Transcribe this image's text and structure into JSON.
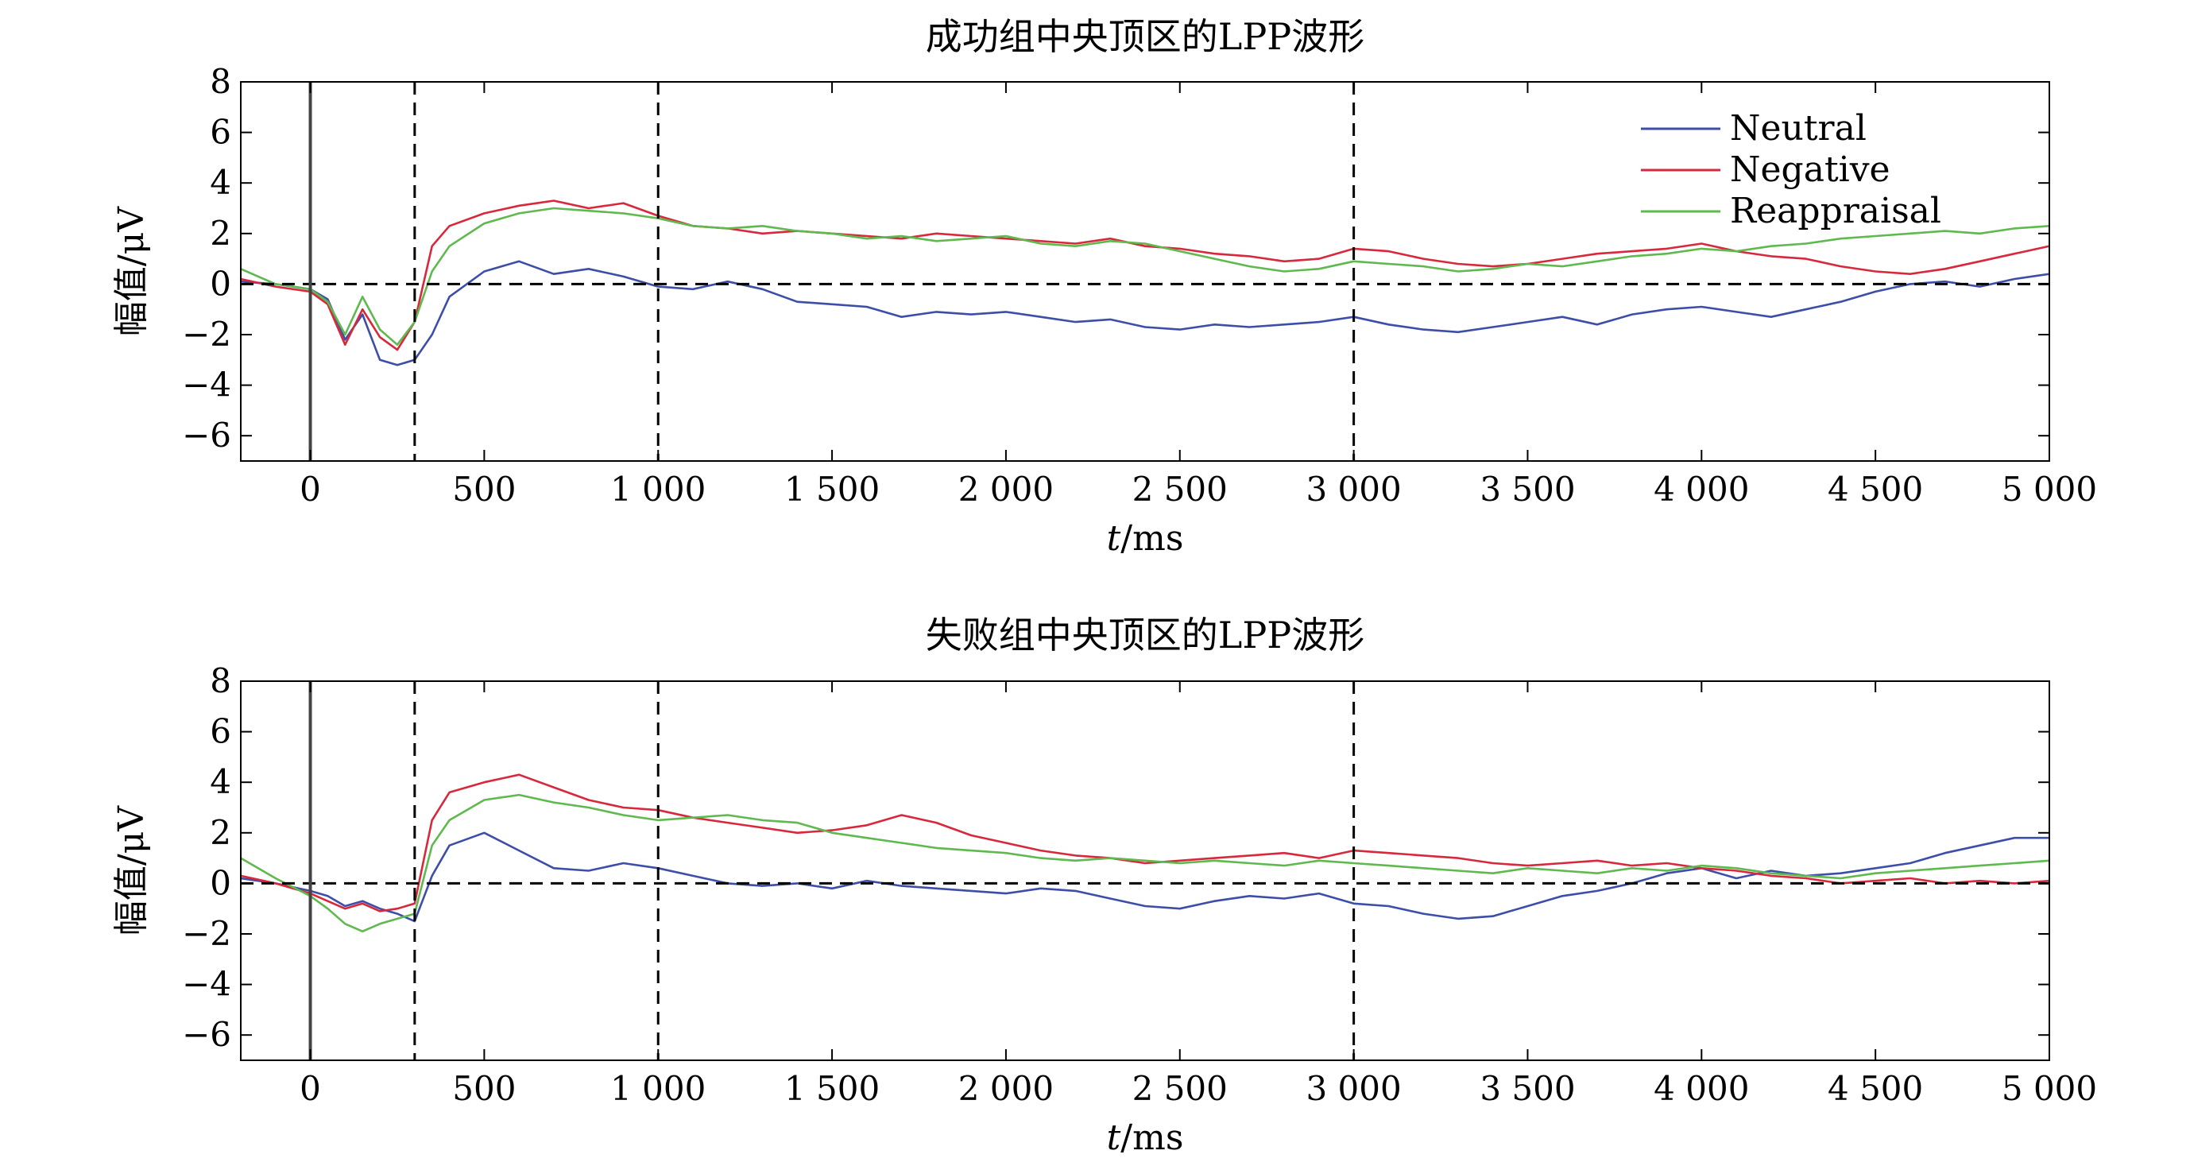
{
  "chart_data": [
    {
      "type": "line",
      "title": "成功组中央顶区的LPP波形",
      "xlabel_italic": "t",
      "xlabel_rest": "/ms",
      "ylabel": "幅值/μV",
      "xlim": [
        -200,
        5000
      ],
      "ylim": [
        -7,
        8
      ],
      "xticks": [
        0,
        500,
        1000,
        1500,
        2000,
        2500,
        3000,
        3500,
        4000,
        4500,
        5000
      ],
      "xtick_labels": [
        "0",
        "500",
        "1 000",
        "1 500",
        "2 000",
        "2 500",
        "3 000",
        "3 500",
        "4 000",
        "4 500",
        "5 000"
      ],
      "yticks": [
        -6,
        -4,
        -2,
        0,
        2,
        4,
        6,
        8
      ],
      "ytick_labels": [
        "−6",
        "−4",
        "−2",
        "0",
        "2",
        "4",
        "6",
        "8"
      ],
      "vlines_solid": [
        0
      ],
      "vlines_dashed": [
        300,
        1000,
        3000
      ],
      "hline_dashed": 0,
      "legend_position": "top-right",
      "grid": false,
      "series": [
        {
          "name": "Neutral",
          "color": "#3d4ea8",
          "x": [
            -200,
            -100,
            0,
            50,
            100,
            150,
            200,
            250,
            300,
            350,
            400,
            500,
            600,
            700,
            800,
            900,
            1000,
            1100,
            1200,
            1300,
            1400,
            1500,
            1600,
            1700,
            1800,
            1900,
            2000,
            2100,
            2200,
            2300,
            2400,
            2500,
            2600,
            2700,
            2800,
            2900,
            3000,
            3100,
            3200,
            3300,
            3400,
            3500,
            3600,
            3700,
            3800,
            3900,
            4000,
            4100,
            4200,
            4300,
            4400,
            4500,
            4600,
            4700,
            4800,
            4900,
            5000
          ],
          "y": [
            0.1,
            0.0,
            -0.2,
            -0.6,
            -2.2,
            -1.2,
            -3.0,
            -3.2,
            -3.0,
            -2.0,
            -0.5,
            0.5,
            0.9,
            0.4,
            0.6,
            0.3,
            -0.1,
            -0.2,
            0.1,
            -0.2,
            -0.7,
            -0.8,
            -0.9,
            -1.3,
            -1.1,
            -1.2,
            -1.1,
            -1.3,
            -1.5,
            -1.4,
            -1.7,
            -1.8,
            -1.6,
            -1.7,
            -1.6,
            -1.5,
            -1.3,
            -1.6,
            -1.8,
            -1.9,
            -1.7,
            -1.5,
            -1.3,
            -1.6,
            -1.2,
            -1.0,
            -0.9,
            -1.1,
            -1.3,
            -1.0,
            -0.7,
            -0.3,
            0.0,
            0.1,
            -0.1,
            0.2,
            0.4
          ]
        },
        {
          "name": "Negative",
          "color": "#d8283c",
          "x": [
            -200,
            -100,
            0,
            50,
            100,
            150,
            200,
            250,
            300,
            350,
            400,
            500,
            600,
            700,
            800,
            900,
            1000,
            1100,
            1200,
            1300,
            1400,
            1500,
            1600,
            1700,
            1800,
            1900,
            2000,
            2100,
            2200,
            2300,
            2400,
            2500,
            2600,
            2700,
            2800,
            2900,
            3000,
            3100,
            3200,
            3300,
            3400,
            3500,
            3600,
            3700,
            3800,
            3900,
            4000,
            4100,
            4200,
            4300,
            4400,
            4500,
            4600,
            4700,
            4800,
            4900,
            5000
          ],
          "y": [
            0.2,
            -0.1,
            -0.3,
            -0.8,
            -2.4,
            -1.0,
            -2.1,
            -2.6,
            -1.5,
            1.5,
            2.3,
            2.8,
            3.1,
            3.3,
            3.0,
            3.2,
            2.7,
            2.3,
            2.2,
            2.0,
            2.1,
            2.0,
            1.9,
            1.8,
            2.0,
            1.9,
            1.8,
            1.7,
            1.6,
            1.8,
            1.5,
            1.4,
            1.2,
            1.1,
            0.9,
            1.0,
            1.4,
            1.3,
            1.0,
            0.8,
            0.7,
            0.8,
            1.0,
            1.2,
            1.3,
            1.4,
            1.6,
            1.3,
            1.1,
            1.0,
            0.7,
            0.5,
            0.4,
            0.6,
            0.9,
            1.2,
            1.5
          ]
        },
        {
          "name": "Reappraisal",
          "color": "#5fb94f",
          "x": [
            -200,
            -100,
            0,
            50,
            100,
            150,
            200,
            250,
            300,
            350,
            400,
            500,
            600,
            700,
            800,
            900,
            1000,
            1100,
            1200,
            1300,
            1400,
            1500,
            1600,
            1700,
            1800,
            1900,
            2000,
            2100,
            2200,
            2300,
            2400,
            2500,
            2600,
            2700,
            2800,
            2900,
            3000,
            3100,
            3200,
            3300,
            3400,
            3500,
            3600,
            3700,
            3800,
            3900,
            4000,
            4100,
            4200,
            4300,
            4400,
            4500,
            4600,
            4700,
            4800,
            4900,
            5000
          ],
          "y": [
            0.6,
            0.0,
            -0.2,
            -0.7,
            -2.0,
            -0.5,
            -1.8,
            -2.4,
            -1.5,
            0.5,
            1.5,
            2.4,
            2.8,
            3.0,
            2.9,
            2.8,
            2.6,
            2.3,
            2.2,
            2.3,
            2.1,
            2.0,
            1.8,
            1.9,
            1.7,
            1.8,
            1.9,
            1.6,
            1.5,
            1.7,
            1.6,
            1.3,
            1.0,
            0.7,
            0.5,
            0.6,
            0.9,
            0.8,
            0.7,
            0.5,
            0.6,
            0.8,
            0.7,
            0.9,
            1.1,
            1.2,
            1.4,
            1.3,
            1.5,
            1.6,
            1.8,
            1.9,
            2.0,
            2.1,
            2.0,
            2.2,
            2.3
          ]
        }
      ]
    },
    {
      "type": "line",
      "title": "失败组中央顶区的LPP波形",
      "xlabel_italic": "t",
      "xlabel_rest": "/ms",
      "ylabel": "幅值/μV",
      "xlim": [
        -200,
        5000
      ],
      "ylim": [
        -7,
        8
      ],
      "xticks": [
        0,
        500,
        1000,
        1500,
        2000,
        2500,
        3000,
        3500,
        4000,
        4500,
        5000
      ],
      "xtick_labels": [
        "0",
        "500",
        "1 000",
        "1 500",
        "2 000",
        "2 500",
        "3 000",
        "3 500",
        "4 000",
        "4 500",
        "5 000"
      ],
      "yticks": [
        -6,
        -4,
        -2,
        0,
        2,
        4,
        6,
        8
      ],
      "ytick_labels": [
        "−6",
        "−4",
        "−2",
        "0",
        "2",
        "4",
        "6",
        "8"
      ],
      "vlines_solid": [
        0
      ],
      "vlines_dashed": [
        300,
        1000,
        3000
      ],
      "hline_dashed": 0,
      "grid": false,
      "series": [
        {
          "name": "Neutral",
          "color": "#3d4ea8",
          "x": [
            -200,
            -100,
            0,
            50,
            100,
            150,
            200,
            250,
            300,
            350,
            400,
            500,
            600,
            700,
            800,
            900,
            1000,
            1100,
            1200,
            1300,
            1400,
            1500,
            1600,
            1700,
            1800,
            1900,
            2000,
            2100,
            2200,
            2300,
            2400,
            2500,
            2600,
            2700,
            2800,
            2900,
            3000,
            3100,
            3200,
            3300,
            3400,
            3500,
            3600,
            3700,
            3800,
            3900,
            4000,
            4100,
            4200,
            4300,
            4400,
            4500,
            4600,
            4700,
            4800,
            4900,
            5000
          ],
          "y": [
            0.2,
            0.0,
            -0.3,
            -0.5,
            -0.9,
            -0.7,
            -1.0,
            -1.2,
            -1.5,
            0.3,
            1.5,
            2.0,
            1.3,
            0.6,
            0.5,
            0.8,
            0.6,
            0.3,
            0.0,
            -0.1,
            0.0,
            -0.2,
            0.1,
            -0.1,
            -0.2,
            -0.3,
            -0.4,
            -0.2,
            -0.3,
            -0.6,
            -0.9,
            -1.0,
            -0.7,
            -0.5,
            -0.6,
            -0.4,
            -0.8,
            -0.9,
            -1.2,
            -1.4,
            -1.3,
            -0.9,
            -0.5,
            -0.3,
            0.0,
            0.4,
            0.6,
            0.2,
            0.5,
            0.3,
            0.4,
            0.6,
            0.8,
            1.2,
            1.5,
            1.8,
            1.8
          ]
        },
        {
          "name": "Negative",
          "color": "#d8283c",
          "x": [
            -200,
            -100,
            0,
            50,
            100,
            150,
            200,
            250,
            300,
            350,
            400,
            500,
            600,
            700,
            800,
            900,
            1000,
            1100,
            1200,
            1300,
            1400,
            1500,
            1600,
            1700,
            1800,
            1900,
            2000,
            2100,
            2200,
            2300,
            2400,
            2500,
            2600,
            2700,
            2800,
            2900,
            3000,
            3100,
            3200,
            3300,
            3400,
            3500,
            3600,
            3700,
            3800,
            3900,
            4000,
            4100,
            4200,
            4300,
            4400,
            4500,
            4600,
            4700,
            4800,
            4900,
            5000
          ],
          "y": [
            0.3,
            0.0,
            -0.4,
            -0.7,
            -1.0,
            -0.8,
            -1.1,
            -1.0,
            -0.8,
            2.5,
            3.6,
            4.0,
            4.3,
            3.8,
            3.3,
            3.0,
            2.9,
            2.6,
            2.4,
            2.2,
            2.0,
            2.1,
            2.3,
            2.7,
            2.4,
            1.9,
            1.6,
            1.3,
            1.1,
            1.0,
            0.8,
            0.9,
            1.0,
            1.1,
            1.2,
            1.0,
            1.3,
            1.2,
            1.1,
            1.0,
            0.8,
            0.7,
            0.8,
            0.9,
            0.7,
            0.8,
            0.6,
            0.5,
            0.3,
            0.2,
            0.0,
            0.1,
            0.2,
            0.0,
            0.1,
            0.0,
            0.1
          ]
        },
        {
          "name": "Reappraisal",
          "color": "#5fb94f",
          "x": [
            -200,
            -100,
            0,
            50,
            100,
            150,
            200,
            250,
            300,
            350,
            400,
            500,
            600,
            700,
            800,
            900,
            1000,
            1100,
            1200,
            1300,
            1400,
            1500,
            1600,
            1700,
            1800,
            1900,
            2000,
            2100,
            2200,
            2300,
            2400,
            2500,
            2600,
            2700,
            2800,
            2900,
            3000,
            3100,
            3200,
            3300,
            3400,
            3500,
            3600,
            3700,
            3800,
            3900,
            4000,
            4100,
            4200,
            4300,
            4400,
            4500,
            4600,
            4700,
            4800,
            4900,
            5000
          ],
          "y": [
            1.0,
            0.2,
            -0.5,
            -1.0,
            -1.6,
            -1.9,
            -1.6,
            -1.4,
            -1.2,
            1.5,
            2.5,
            3.3,
            3.5,
            3.2,
            3.0,
            2.7,
            2.5,
            2.6,
            2.7,
            2.5,
            2.4,
            2.0,
            1.8,
            1.6,
            1.4,
            1.3,
            1.2,
            1.0,
            0.9,
            1.0,
            0.9,
            0.8,
            0.9,
            0.8,
            0.7,
            0.9,
            0.8,
            0.7,
            0.6,
            0.5,
            0.4,
            0.6,
            0.5,
            0.4,
            0.6,
            0.5,
            0.7,
            0.6,
            0.4,
            0.3,
            0.2,
            0.4,
            0.5,
            0.6,
            0.7,
            0.8,
            0.9
          ]
        }
      ]
    }
  ]
}
